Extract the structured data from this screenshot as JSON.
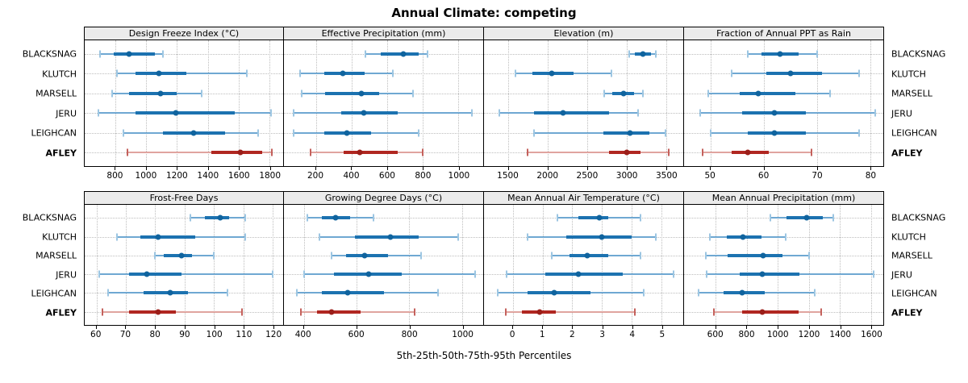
{
  "title": "Annual Climate: competing",
  "footer": "5th-25th-50th-75th-95th Percentiles",
  "percentiles": [
    "5th",
    "25th",
    "50th",
    "75th",
    "95th"
  ],
  "stations": [
    {
      "name": "BLACKSNAG",
      "color": "blue",
      "bold": false
    },
    {
      "name": "KLUTCH",
      "color": "blue",
      "bold": false
    },
    {
      "name": "MARSELL",
      "color": "blue",
      "bold": false
    },
    {
      "name": "JERU",
      "color": "blue",
      "bold": false
    },
    {
      "name": "LEIGHCAN",
      "color": "blue",
      "bold": false
    },
    {
      "name": "AFLEY",
      "color": "red",
      "bold": true
    }
  ],
  "colors": {
    "blue": {
      "line": "#6fa8d2",
      "cap": "#9dc6e2",
      "box": "#1c72b0",
      "dot": "#0f639e"
    },
    "red": {
      "line": "#e0a49f",
      "cap": "#c4615c",
      "box": "#b02721",
      "dot": "#9b1e19"
    },
    "grid": "#bdbdbd",
    "strip_bg": "#ebebeb",
    "border": "#000000"
  },
  "chart_data": [
    {
      "type": "dotplot-interval",
      "title": "Design Freeze Index (°C)",
      "xlim": [
        600,
        1890
      ],
      "ticks": [
        800,
        1000,
        1200,
        1400,
        1600,
        1800
      ],
      "series": [
        {
          "name": "BLACKSNAG",
          "values": [
            700,
            790,
            890,
            1055,
            1110
          ]
        },
        {
          "name": "KLUTCH",
          "values": [
            810,
            930,
            1085,
            1260,
            1655
          ]
        },
        {
          "name": "MARSELL",
          "values": [
            780,
            890,
            1095,
            1200,
            1360
          ]
        },
        {
          "name": "JERU",
          "values": [
            690,
            930,
            1195,
            1575,
            1810
          ]
        },
        {
          "name": "LEIGHCAN",
          "values": [
            850,
            1110,
            1310,
            1510,
            1730
          ]
        },
        {
          "name": "AFLEY",
          "values": [
            880,
            1425,
            1610,
            1755,
            1815
          ]
        }
      ]
    },
    {
      "type": "dotplot-interval",
      "title": "Effective Precipitation (mm)",
      "xlim": [
        20,
        1140
      ],
      "ticks": [
        200,
        400,
        600,
        800,
        1000
      ],
      "series": [
        {
          "name": "BLACKSNAG",
          "values": [
            480,
            565,
            690,
            775,
            825
          ]
        },
        {
          "name": "KLUTCH",
          "values": [
            110,
            245,
            350,
            475,
            630
          ]
        },
        {
          "name": "MARSELL",
          "values": [
            120,
            250,
            455,
            555,
            745
          ]
        },
        {
          "name": "JERU",
          "values": [
            75,
            340,
            470,
            660,
            1075
          ]
        },
        {
          "name": "LEIGHCAN",
          "values": [
            75,
            245,
            375,
            510,
            775
          ]
        },
        {
          "name": "AFLEY",
          "values": [
            170,
            355,
            445,
            660,
            800
          ]
        }
      ]
    },
    {
      "type": "dotplot-interval",
      "title": "Elevation (m)",
      "xlim": [
        1190,
        3720
      ],
      "ticks": [
        1500,
        2000,
        2500,
        3000,
        3500
      ],
      "series": [
        {
          "name": "BLACKSNAG",
          "values": [
            3030,
            3110,
            3205,
            3315,
            3375
          ]
        },
        {
          "name": "KLUTCH",
          "values": [
            1590,
            1805,
            2050,
            2330,
            2805
          ]
        },
        {
          "name": "MARSELL",
          "values": [
            2715,
            2815,
            2965,
            3100,
            3210
          ]
        },
        {
          "name": "JERU",
          "values": [
            1385,
            1825,
            2195,
            2780,
            3145
          ]
        },
        {
          "name": "LEIGHCAN",
          "values": [
            1825,
            2710,
            3045,
            3290,
            3495
          ]
        },
        {
          "name": "AFLEY",
          "values": [
            1740,
            2775,
            3005,
            3175,
            3540
          ]
        }
      ]
    },
    {
      "type": "dotplot-interval",
      "title": "Fraction of Annual PPT as Rain",
      "xlim": [
        45,
        82.5
      ],
      "ticks": [
        50,
        60,
        70,
        80
      ],
      "series": [
        {
          "name": "BLACKSNAG",
          "values": [
            57,
            59.5,
            63,
            66.5,
            70
          ]
        },
        {
          "name": "KLUTCH",
          "values": [
            54,
            60.5,
            65,
            71,
            78
          ]
        },
        {
          "name": "MARSELL",
          "values": [
            49.5,
            55.5,
            59,
            66,
            72.5
          ]
        },
        {
          "name": "JERU",
          "values": [
            48,
            56,
            62,
            68,
            81
          ]
        },
        {
          "name": "LEIGHCAN",
          "values": [
            50,
            57,
            62,
            68,
            78
          ]
        },
        {
          "name": "AFLEY",
          "values": [
            48.5,
            54,
            57,
            61,
            69
          ]
        }
      ]
    },
    {
      "type": "dotplot-interval",
      "title": "Frost-Free Days",
      "xlim": [
        56,
        123.5
      ],
      "ticks": [
        60,
        70,
        80,
        90,
        100,
        110,
        120
      ],
      "series": [
        {
          "name": "BLACKSNAG",
          "values": [
            92,
            97,
            102,
            105,
            110.5
          ]
        },
        {
          "name": "KLUTCH",
          "values": [
            67,
            75,
            81,
            93.5,
            110.5
          ]
        },
        {
          "name": "MARSELL",
          "values": [
            80,
            83,
            89,
            92.5,
            100
          ]
        },
        {
          "name": "JERU",
          "values": [
            61,
            71,
            77,
            89,
            120
          ]
        },
        {
          "name": "LEIGHCAN",
          "values": [
            64,
            76,
            85,
            91,
            104.5
          ]
        },
        {
          "name": "AFLEY",
          "values": [
            62,
            71,
            81,
            87,
            109.5
          ]
        }
      ]
    },
    {
      "type": "dotplot-interval",
      "title": "Growing Degree Days (°C)",
      "xlim": [
        325,
        1080
      ],
      "ticks": [
        400,
        600,
        800,
        1000
      ],
      "series": [
        {
          "name": "BLACKSNAG",
          "values": [
            415,
            470,
            520,
            575,
            665
          ]
        },
        {
          "name": "KLUTCH",
          "values": [
            460,
            595,
            730,
            835,
            985
          ]
        },
        {
          "name": "MARSELL",
          "values": [
            505,
            560,
            630,
            720,
            845
          ]
        },
        {
          "name": "JERU",
          "values": [
            400,
            515,
            645,
            770,
            1050
          ]
        },
        {
          "name": "LEIGHCAN",
          "values": [
            375,
            470,
            565,
            705,
            910
          ]
        },
        {
          "name": "AFLEY",
          "values": [
            390,
            450,
            505,
            615,
            820
          ]
        }
      ]
    },
    {
      "type": "dotplot-interval",
      "title": "Mean Annual Air Temperature (°C)",
      "xlim": [
        -0.97,
        5.73
      ],
      "ticks": [
        0,
        1,
        2,
        3,
        4,
        5
      ],
      "series": [
        {
          "name": "BLACKSNAG",
          "values": [
            1.5,
            2.2,
            2.9,
            3.2,
            4.3
          ]
        },
        {
          "name": "KLUTCH",
          "values": [
            0.5,
            1.8,
            3.0,
            4.0,
            4.8
          ]
        },
        {
          "name": "MARSELL",
          "values": [
            1.3,
            1.9,
            2.5,
            3.2,
            4.3
          ]
        },
        {
          "name": "JERU",
          "values": [
            -0.2,
            1.1,
            2.2,
            3.7,
            5.4
          ]
        },
        {
          "name": "LEIGHCAN",
          "values": [
            -0.5,
            0.5,
            1.4,
            2.6,
            4.4
          ]
        },
        {
          "name": "AFLEY",
          "values": [
            -0.25,
            0.3,
            0.9,
            1.45,
            4.1
          ]
        }
      ]
    },
    {
      "type": "dotplot-interval",
      "title": "Mean Annual Precipitation (mm)",
      "xlim": [
        395,
        1680
      ],
      "ticks": [
        600,
        800,
        1000,
        1200,
        1400,
        1600
      ],
      "series": [
        {
          "name": "BLACKSNAG",
          "values": [
            950,
            1055,
            1185,
            1290,
            1360
          ]
        },
        {
          "name": "KLUTCH",
          "values": [
            560,
            670,
            775,
            895,
            1050
          ]
        },
        {
          "name": "MARSELL",
          "values": [
            535,
            675,
            905,
            1030,
            1200
          ]
        },
        {
          "name": "JERU",
          "values": [
            540,
            755,
            900,
            1140,
            1615
          ]
        },
        {
          "name": "LEIGHCAN",
          "values": [
            490,
            650,
            770,
            915,
            1240
          ]
        },
        {
          "name": "AFLEY",
          "values": [
            585,
            770,
            900,
            1135,
            1280
          ]
        }
      ]
    }
  ]
}
